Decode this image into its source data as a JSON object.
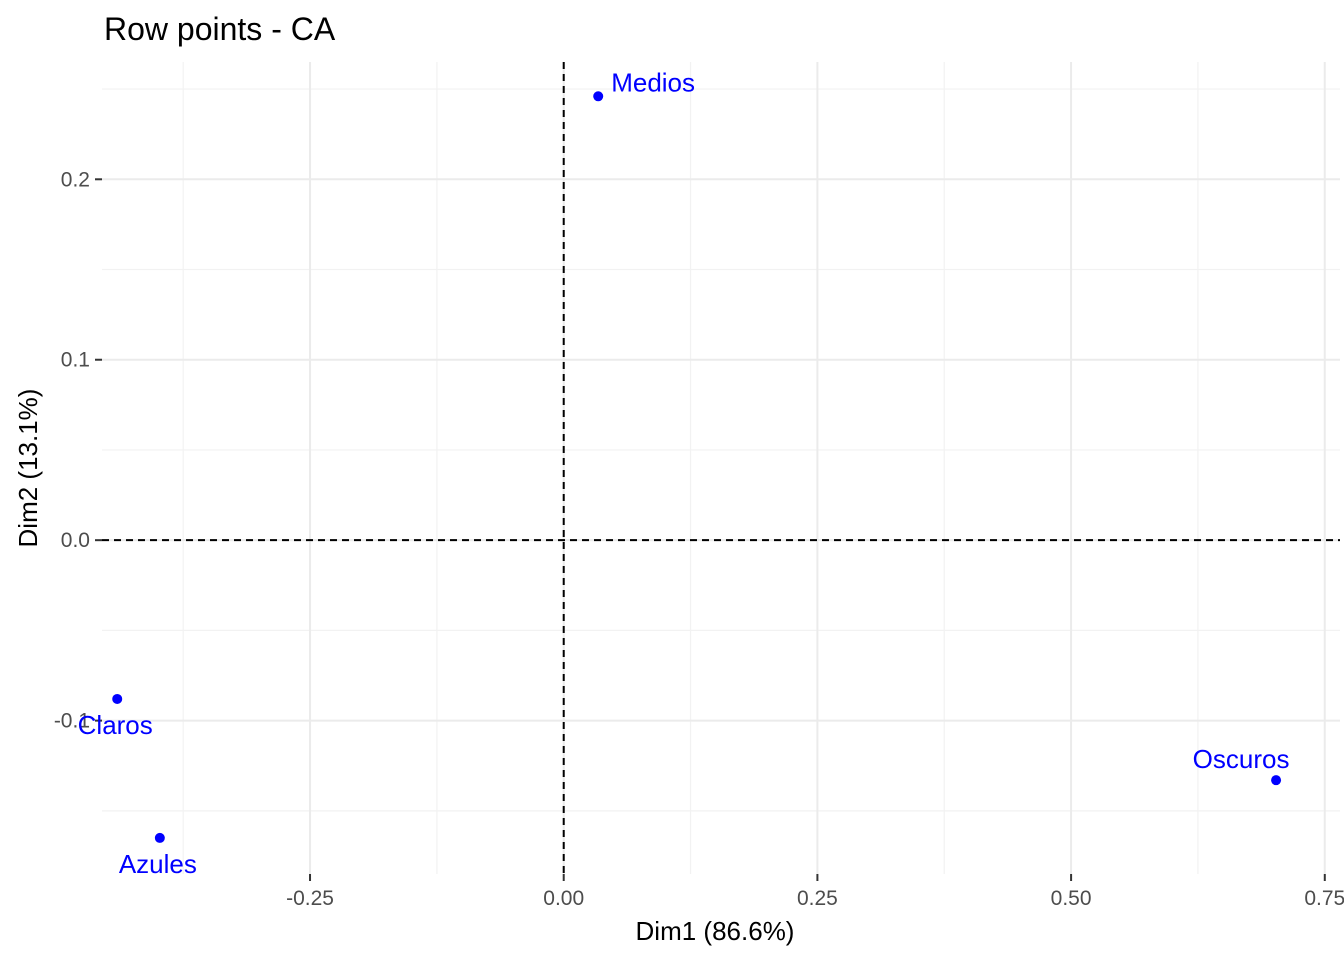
{
  "chart_data": {
    "type": "scatter",
    "title": "Row points - CA",
    "xlabel": "Dim1 (86.6%)",
    "ylabel": "Dim2 (13.1%)",
    "xlim": [
      -0.455,
      0.765
    ],
    "ylim": [
      -0.185,
      0.265
    ],
    "x_ticks": [
      {
        "value": -0.25,
        "label": "-0.25"
      },
      {
        "value": 0.0,
        "label": "0.00"
      },
      {
        "value": 0.25,
        "label": "0.25"
      },
      {
        "value": 0.5,
        "label": "0.50"
      },
      {
        "value": 0.75,
        "label": "0.75"
      }
    ],
    "y_ticks": [
      {
        "value": -0.1,
        "label": "-0.1"
      },
      {
        "value": 0.0,
        "label": "0.0"
      },
      {
        "value": 0.1,
        "label": "0.1"
      },
      {
        "value": 0.2,
        "label": "0.2"
      }
    ],
    "x_minor_grid": [
      -0.375,
      -0.125,
      0.125,
      0.375,
      0.625
    ],
    "y_minor_grid": [
      -0.15,
      -0.05,
      0.05,
      0.15,
      0.25
    ],
    "grid": true,
    "reference_lines": {
      "x": 0,
      "y": 0,
      "style": "dashed"
    },
    "point_color": "#0000ff",
    "points": [
      {
        "label": "Medios",
        "x": 0.034,
        "y": 0.246,
        "label_pos": "top-right"
      },
      {
        "label": "Claros",
        "x": -0.44,
        "y": -0.088,
        "label_pos": "bottom"
      },
      {
        "label": "Azules",
        "x": -0.398,
        "y": -0.165,
        "label_pos": "bottom"
      },
      {
        "label": "Oscuros",
        "x": 0.702,
        "y": -0.133,
        "label_pos": "top-left"
      }
    ]
  }
}
